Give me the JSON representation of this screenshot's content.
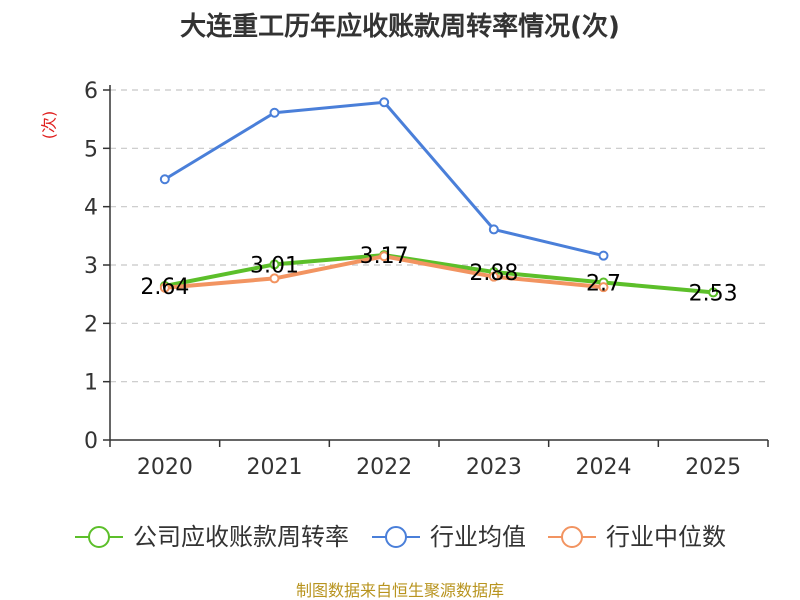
{
  "chart_data": {
    "type": "line",
    "title": "大连重工历年应收账款周转率情况(次)",
    "ylabel": "(次)",
    "xlabel": "",
    "categories": [
      "2020",
      "2021",
      "2022",
      "2023",
      "2024",
      "2025"
    ],
    "ylim": [
      0,
      6
    ],
    "yticks": [
      0,
      1,
      2,
      3,
      4,
      5,
      6
    ],
    "grid": true,
    "legend_position": "bottom",
    "series": [
      {
        "name": "公司应收账款周转率",
        "color": "#5cbf2a",
        "values": [
          2.64,
          3.01,
          3.17,
          2.88,
          2.7,
          2.53
        ],
        "labels": [
          "2.64",
          "3.01",
          "3.17",
          "2.88",
          "2.7",
          "2.53"
        ]
      },
      {
        "name": "行业均值",
        "color": "#4a7fd9",
        "values": [
          4.47,
          5.61,
          5.79,
          3.61,
          3.16,
          null
        ]
      },
      {
        "name": "行业中位数",
        "color": "#f29461",
        "values": [
          2.61,
          2.77,
          3.15,
          2.8,
          2.62,
          null
        ]
      }
    ],
    "source": "制图数据来自恒生聚源数据库"
  }
}
